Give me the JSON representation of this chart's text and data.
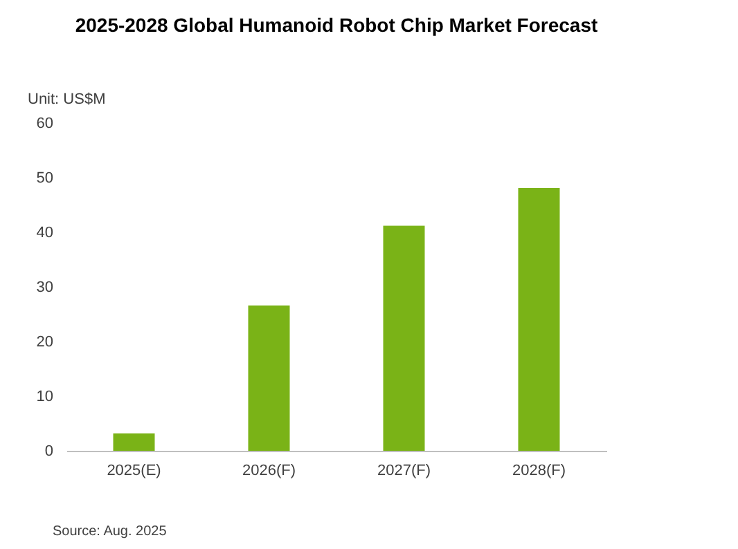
{
  "chart_data": {
    "type": "bar",
    "title": "2025-2028 Global Humanoid  Robot Chip Market Forecast",
    "ylabel": "Unit: US$M",
    "categories": [
      "2025(E)",
      "2026(F)",
      "2027(F)",
      "2028(F)"
    ],
    "values": [
      3.2,
      26.6,
      41.2,
      48.1
    ],
    "color": "#7ab317",
    "ylim": [
      0,
      60
    ],
    "yticks": [
      0,
      10,
      20,
      30,
      40,
      50,
      60
    ],
    "grid": false,
    "annotations": [
      "Source: Aug. 2025"
    ]
  }
}
